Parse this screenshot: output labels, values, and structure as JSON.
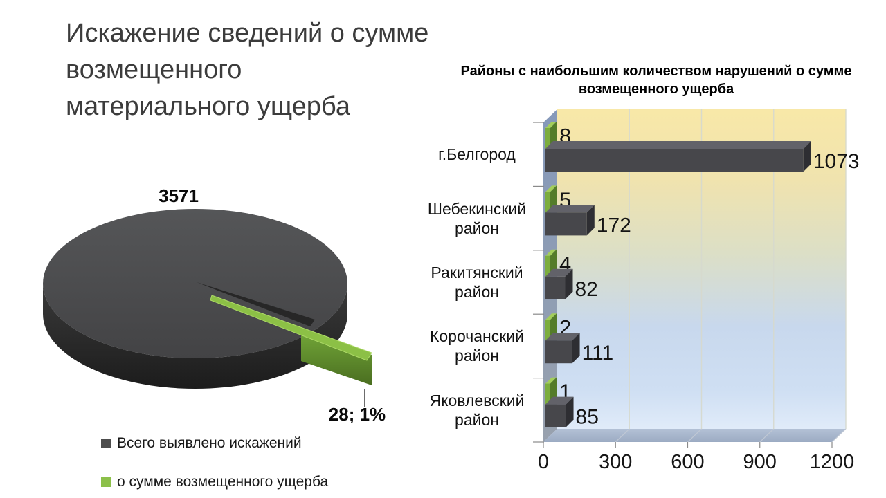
{
  "slide": {
    "title": "Искажение сведений о сумме возмещенного материального ущерба",
    "title_lines": [
      "Искажение сведений о сумме возмещенного",
      "материального ущерба"
    ]
  },
  "chart_data": [
    {
      "type": "pie",
      "legend": [
        "Всего выявлено искажений",
        "о сумме возмещенного ущерба"
      ],
      "categories": [
        "Всего выявлено искажений",
        "о сумме возмещенного ущерба"
      ],
      "values": [
        3571,
        28
      ],
      "data_labels": [
        "3571",
        "28; 1%"
      ],
      "colors": [
        "#4D4D4D",
        "#8CC04A"
      ],
      "legend_position": "bottom-left",
      "exploded_slice": "о сумме возмещенного ущерба"
    },
    {
      "type": "bar",
      "orientation": "horizontal",
      "style": "3d",
      "title": "Районы с наибольшим количеством нарушений  о сумме возмещенного ущерба",
      "categories": [
        "г.Белгород",
        "Шебекинский район",
        "Ракитянский район",
        "Корочанский район",
        "Яковлевский район"
      ],
      "series": [
        {
          "name": "о сумме возмещенного ущерба",
          "values": [
            8,
            5,
            4,
            2,
            1
          ],
          "color": "#7CAD3E"
        },
        {
          "name": "Всего выявлено искажений",
          "values": [
            1073,
            172,
            82,
            111,
            85
          ],
          "color": "#47474B"
        }
      ],
      "xlim": [
        0,
        1200
      ],
      "xticks": [
        0,
        300,
        600,
        900,
        1200
      ],
      "grid": true,
      "legend_position": "none"
    }
  ]
}
